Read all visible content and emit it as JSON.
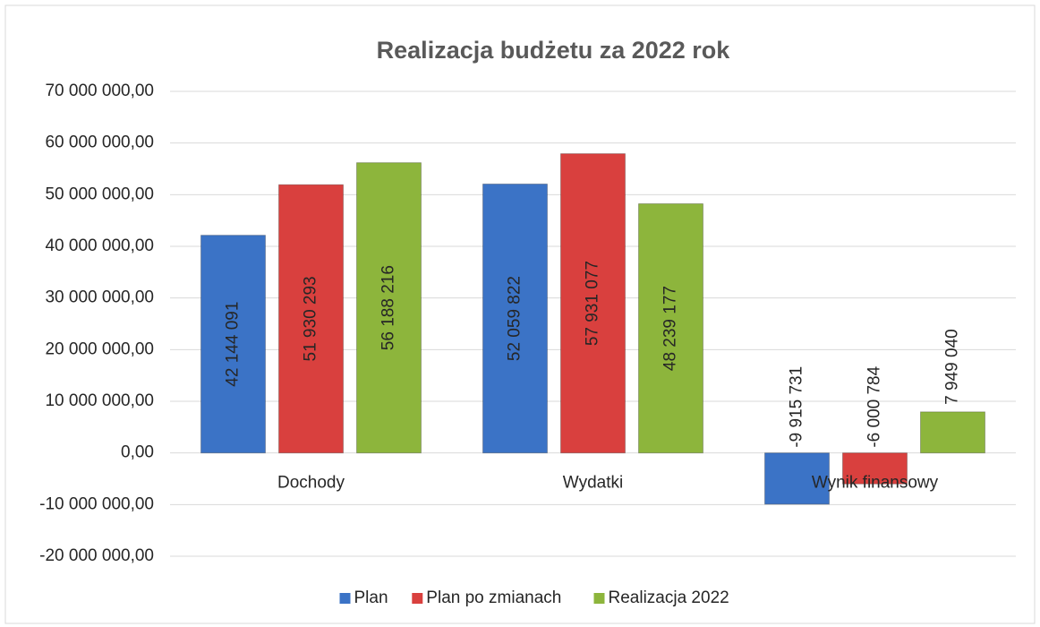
{
  "chart_data": {
    "type": "bar",
    "title": "Realizacja budżetu za  2022 rok",
    "categories": [
      "Dochody",
      "Wydatki",
      "Wynik finansowy"
    ],
    "series": [
      {
        "name": "Plan",
        "color": "#3b73c6",
        "values": [
          42144091,
          52059822,
          -9915731
        ],
        "value_labels": [
          "42 144 091",
          "52 059 822",
          "-9 915 731"
        ]
      },
      {
        "name": "Plan po zmianach",
        "color": "#d9403e",
        "values": [
          51930293,
          57931077,
          -6000784
        ],
        "value_labels": [
          "51 930 293",
          "57 931 077",
          "-6 000 784"
        ]
      },
      {
        "name": "Realizacja 2022",
        "color": "#8db53c",
        "values": [
          56188216,
          48239177,
          7949040
        ],
        "value_labels": [
          "56 188 216",
          "48 239 177",
          "7 949 040"
        ]
      }
    ],
    "ylim": [
      -20000000,
      70000000
    ],
    "yticks": [
      {
        "value": 70000000,
        "label": "70 000 000,00"
      },
      {
        "value": 60000000,
        "label": "60 000 000,00"
      },
      {
        "value": 50000000,
        "label": "50 000 000,00"
      },
      {
        "value": 40000000,
        "label": "40 000 000,00"
      },
      {
        "value": 30000000,
        "label": "30 000 000,00"
      },
      {
        "value": 20000000,
        "label": "20 000 000,00"
      },
      {
        "value": 10000000,
        "label": "10 000 000,00"
      },
      {
        "value": 0,
        "label": "0,00"
      },
      {
        "value": -10000000,
        "label": "-10 000 000,00"
      },
      {
        "value": -20000000,
        "label": "-20 000 000,00"
      }
    ],
    "grid": true,
    "legend": "bottom"
  }
}
